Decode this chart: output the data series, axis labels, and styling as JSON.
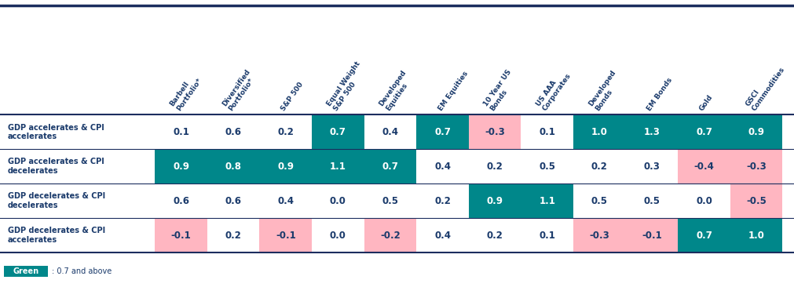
{
  "columns": [
    "Barbell\nPortfolio*",
    "Diversified\nPortfolio*",
    "S&P 500",
    "Equal Weight\nS&P 500",
    "Developed\nEquities",
    "EM Equities",
    "10 Year US\nBonds",
    "US AAA\nCorporates",
    "Developed\nBonds",
    "EM Bonds",
    "Gold",
    "GSCI\nCommodities"
  ],
  "rows": [
    "GDP accelerates & CPI\naccelerates",
    "GDP accelerates & CPI\ndecelerates",
    "GDP decelerates & CPI\ndecelerates",
    "GDP decelerates & CPI\naccelerates"
  ],
  "data": [
    [
      0.1,
      0.6,
      0.2,
      0.7,
      0.4,
      0.7,
      -0.3,
      0.1,
      1.0,
      1.3,
      0.7,
      0.9
    ],
    [
      0.9,
      0.8,
      0.9,
      1.1,
      0.7,
      0.4,
      0.2,
      0.5,
      0.2,
      0.3,
      -0.4,
      -0.3
    ],
    [
      0.6,
      0.6,
      0.4,
      0.0,
      0.5,
      0.2,
      0.9,
      1.1,
      0.5,
      0.5,
      0.0,
      -0.5
    ],
    [
      -0.1,
      0.2,
      -0.1,
      0.0,
      -0.2,
      0.4,
      0.2,
      0.1,
      -0.3,
      -0.1,
      0.7,
      1.0
    ]
  ],
  "green_color": "#008080",
  "pink_color": "#FFB6C1",
  "teal_color": "#007B7B",
  "header_text_color": "#1B4F8A",
  "row_label_color": "#1B4F8A",
  "cell_text_color_green": "#FFFFFF",
  "cell_text_color_normal": "#1B4F8A",
  "cell_text_color_pink": "#1B4F8A",
  "top_border_color": "#1B2D5E",
  "bottom_border_color": "#1B2D5E",
  "row_divider_color": "#1B2D5E",
  "background_color": "#FFFFFF",
  "green_threshold": 0.7,
  "pink_threshold": 0.0,
  "legend_green": "#008B8B",
  "legend_text": ": 0.7 and above",
  "legend_label": "Green"
}
